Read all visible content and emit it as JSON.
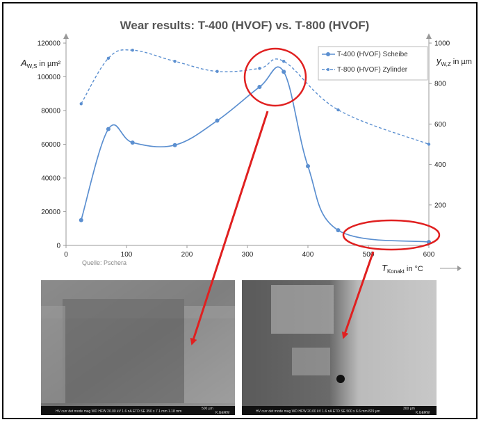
{
  "chart_data": {
    "type": "line",
    "title": "Wear results: T-400 (HVOF) vs. T-800 (HVOF)",
    "x_ticks": [
      "0",
      "100",
      "200",
      "300",
      "400",
      "500",
      "600"
    ],
    "y_left_ticks": [
      "0",
      "20000",
      "40000",
      "60000",
      "80000",
      "100000",
      "120000"
    ],
    "y_right_ticks": [
      "200",
      "400",
      "600",
      "800",
      "1000"
    ],
    "xlim": [
      0,
      600
    ],
    "ylim_left": [
      0,
      120000
    ],
    "ylim_right": [
      0,
      1000
    ],
    "ylabel_left": {
      "main": "A",
      "sub": "W,S",
      "rest": " in µm²"
    },
    "ylabel_right": {
      "main": "y",
      "sub": "W,Z",
      "rest": " in µm"
    },
    "xlabel": {
      "main": "T",
      "sub": "Konakt",
      "rest": " in °C"
    },
    "legend_position": "top-right",
    "grid": false,
    "series": [
      {
        "name": "T-400 (HVOF) Scheibe",
        "axis": "left",
        "style": "solid",
        "color": "#5b8fd0",
        "x": [
          25,
          70,
          110,
          180,
          250,
          320,
          360,
          400,
          450,
          600
        ],
        "y": [
          15000,
          69000,
          61000,
          59500,
          74000,
          94000,
          103000,
          47000,
          9000,
          2000
        ]
      },
      {
        "name": "T-800 (HVOF) Zylinder",
        "axis": "right",
        "style": "dashed",
        "color": "#5b8fd0",
        "x": [
          25,
          70,
          110,
          180,
          250,
          320,
          360,
          450,
          600
        ],
        "y": [
          700,
          925,
          965,
          910,
          860,
          875,
          910,
          670,
          500
        ]
      }
    ],
    "annotations": {
      "source": "Quelle: Pschera"
    }
  },
  "colors": {
    "series": "#5b8fd0",
    "highlight": "#e02020",
    "axis": "#999999"
  },
  "images": [
    {
      "name": "sem-image-left",
      "footer": "HV curr det mode mag WD HFW 20.00 kV 1.6 nA ETD SE 350 x 7.1 mm 1.18 mm",
      "scale": "500 µm",
      "brand": "K.GERW"
    },
    {
      "name": "sem-image-right",
      "footer": "HV curr det mode mag WD HFW 20.00 kV 1.6 nA ETD SE 500 x 6.6 mm 829 µm",
      "scale": "300 µm",
      "brand": "K.GERW"
    }
  ]
}
